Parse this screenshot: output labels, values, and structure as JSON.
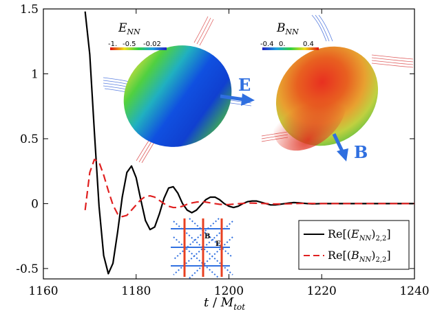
{
  "chart_data": {
    "type": "line",
    "xlabel": "t / M_tot",
    "xlabel_parts": {
      "t": "t",
      "slash": " / ",
      "M": "M",
      "sub": "tot"
    },
    "ylabel": "",
    "title": "",
    "xlim": [
      1160,
      1240
    ],
    "ylim": [
      -0.58,
      1.5
    ],
    "xticks": [
      1160,
      1180,
      1200,
      1220,
      1240
    ],
    "yticks": [
      -0.5,
      0,
      0.5,
      1,
      1.5
    ],
    "xtick_labels": [
      "1160",
      "1180",
      "1200",
      "1220",
      "1240"
    ],
    "ytick_labels": [
      "-0.5",
      "0",
      "0.5",
      "1",
      "1.5"
    ],
    "grid": false,
    "legend_position": "bottom-right",
    "series": [
      {
        "name": "Re[(E_NN)_2,2]",
        "legend_parts": {
          "pre": "Re[(",
          "main": "E",
          "sub1": "NN",
          "mid": ")",
          "sub2": "2,2",
          "post": "]"
        },
        "color": "#000000",
        "style": "solid",
        "x": [
          1169,
          1170,
          1171,
          1172,
          1173,
          1174,
          1175,
          1176,
          1177,
          1178,
          1179,
          1180,
          1181,
          1182,
          1183,
          1184,
          1185,
          1186,
          1187,
          1188,
          1189,
          1190,
          1191,
          1192,
          1193,
          1194,
          1195,
          1196,
          1197,
          1198,
          1199,
          1200,
          1201,
          1202,
          1203,
          1204,
          1205,
          1206,
          1207,
          1208,
          1209,
          1210,
          1211,
          1212,
          1213,
          1214,
          1215,
          1216,
          1217,
          1218,
          1220,
          1225,
          1230,
          1235,
          1240
        ],
        "y": [
          1.48,
          1.15,
          0.55,
          -0.02,
          -0.4,
          -0.54,
          -0.46,
          -0.22,
          0.05,
          0.24,
          0.29,
          0.2,
          0.03,
          -0.13,
          -0.2,
          -0.18,
          -0.08,
          0.04,
          0.12,
          0.13,
          0.08,
          0.0,
          -0.05,
          -0.07,
          -0.05,
          -0.01,
          0.03,
          0.05,
          0.05,
          0.03,
          0.0,
          -0.02,
          -0.03,
          -0.02,
          0.0,
          0.015,
          0.02,
          0.02,
          0.01,
          0.0,
          -0.01,
          -0.01,
          -0.005,
          0.0,
          0.005,
          0.008,
          0.006,
          0.003,
          0.0,
          -0.002,
          0.0,
          0.0,
          0.0,
          0.0,
          0.0
        ]
      },
      {
        "name": "Re[(B_NN)_2,2]",
        "legend_parts": {
          "pre": "Re[(",
          "main": "B",
          "sub1": "NN",
          "mid": ")",
          "sub2": "2,2",
          "post": "]"
        },
        "color": "#e02020",
        "style": "dashed",
        "x": [
          1169,
          1170,
          1171,
          1172,
          1173,
          1174,
          1175,
          1176,
          1177,
          1178,
          1179,
          1180,
          1181,
          1182,
          1183,
          1184,
          1185,
          1186,
          1187,
          1188,
          1189,
          1190,
          1191,
          1192,
          1193,
          1194,
          1195,
          1196,
          1197,
          1198,
          1199,
          1200,
          1201,
          1202,
          1203,
          1204,
          1205,
          1206,
          1208,
          1210,
          1212,
          1214,
          1216,
          1218,
          1220,
          1225,
          1230,
          1235,
          1240
        ],
        "y": [
          -0.05,
          0.24,
          0.34,
          0.32,
          0.22,
          0.1,
          -0.01,
          -0.08,
          -0.1,
          -0.09,
          -0.05,
          -0.01,
          0.03,
          0.055,
          0.06,
          0.05,
          0.025,
          0.0,
          -0.02,
          -0.03,
          -0.03,
          -0.02,
          -0.005,
          0.005,
          0.012,
          0.015,
          0.012,
          0.006,
          0.0,
          -0.005,
          -0.008,
          -0.007,
          -0.004,
          -0.001,
          0.002,
          0.004,
          0.004,
          0.003,
          0.0,
          -0.003,
          -0.002,
          0.0,
          0.002,
          0.001,
          0.0,
          0.0,
          0.0,
          0.0,
          0.0
        ]
      }
    ],
    "annotations": [
      {
        "label_main": "E",
        "label_sub": "NN",
        "colorbar_ticks": [
          "-1.",
          "-0.5",
          "-0.02"
        ]
      },
      {
        "label_main": "B",
        "label_sub": "NN",
        "colorbar_ticks": [
          "-0.4",
          "0.",
          "0.4"
        ]
      }
    ],
    "vector_labels": {
      "e": "E",
      "b": "B",
      "inset_b": "B",
      "inset_e": "E"
    }
  }
}
